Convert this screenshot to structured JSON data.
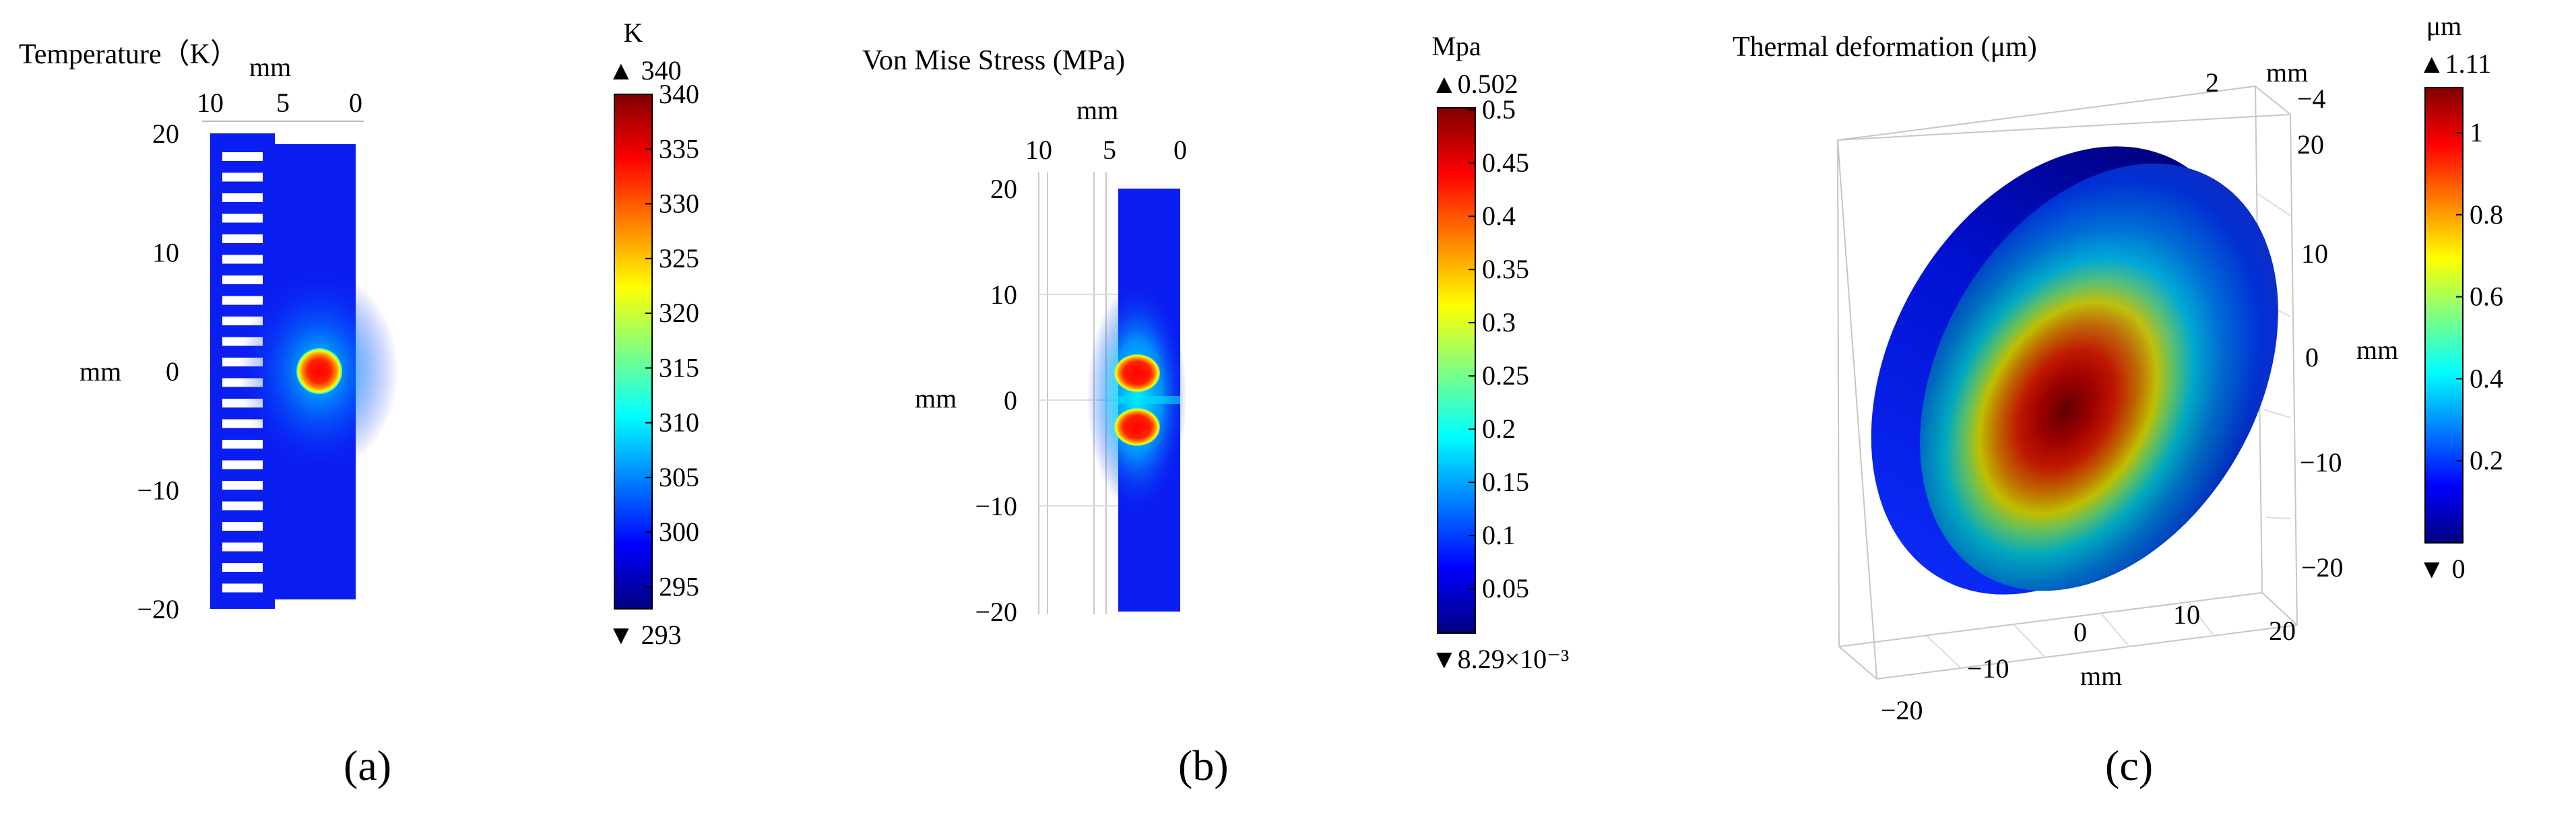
{
  "chart_data": [
    {
      "type": "heatmap",
      "title": "Temperature（K）",
      "xlabel": "mm",
      "ylabel": "mm",
      "x_ticks": [
        "10",
        "5",
        "0"
      ],
      "y_ticks": [
        "20",
        "10",
        "0",
        "−10",
        "−20"
      ],
      "xlim": [
        10,
        0
      ],
      "ylim": [
        -20,
        20
      ],
      "hotspot": {
        "x": 2.5,
        "y": 0,
        "value": 340
      },
      "colorbar": {
        "unit": "K",
        "max_label": "▲ 340",
        "min_label": "▼ 293",
        "ticks": [
          "340",
          "335",
          "330",
          "325",
          "320",
          "315",
          "310",
          "305",
          "300",
          "295"
        ],
        "range": [
          293,
          340
        ]
      },
      "sublabel": "(a)"
    },
    {
      "type": "heatmap",
      "title": "Von Mise Stress (MPa)",
      "xlabel": "mm",
      "ylabel": "mm",
      "x_ticks": [
        "10",
        "5",
        "0"
      ],
      "y_ticks": [
        "20",
        "10",
        "0",
        "−10",
        "−20"
      ],
      "xlim": [
        10,
        0
      ],
      "ylim": [
        -20,
        20
      ],
      "colorbar": {
        "unit": "Mpa",
        "max_label": "▲0.502",
        "min_label": "▼8.29×10⁻³",
        "ticks": [
          "0.5",
          "0.45",
          "0.4",
          "0.35",
          "0.3",
          "0.25",
          "0.2",
          "0.15",
          "0.1",
          "0.05"
        ],
        "range": [
          0.00829,
          0.502
        ]
      },
      "sublabel": "(b)"
    },
    {
      "type": "heatmap",
      "title": "Thermal deformation (μm)",
      "z_label": "mm",
      "y_label": "mm",
      "x_label": "mm",
      "z_ticks": [
        "2",
        "−4"
      ],
      "y_ticks": [
        "20",
        "10",
        "0",
        "−10",
        "−20"
      ],
      "x_ticks": [
        "20",
        "10",
        "0",
        "−10",
        "−20"
      ],
      "colorbar": {
        "unit": "μm",
        "max_label": "▲1.11",
        "min_label": "▼ 0",
        "ticks": [
          "1",
          "0.8",
          "0.6",
          "0.4",
          "0.2"
        ],
        "range": [
          0,
          1.11
        ]
      },
      "sublabel": "(c)"
    }
  ],
  "colors": {
    "jet": [
      "#00007f",
      "#0000ff",
      "#0080ff",
      "#00ffff",
      "#80ff80",
      "#ffff00",
      "#ff8000",
      "#ff0000",
      "#7f0000"
    ],
    "background_blue": "#0a1ef2",
    "slot_white": "#ffffff"
  }
}
